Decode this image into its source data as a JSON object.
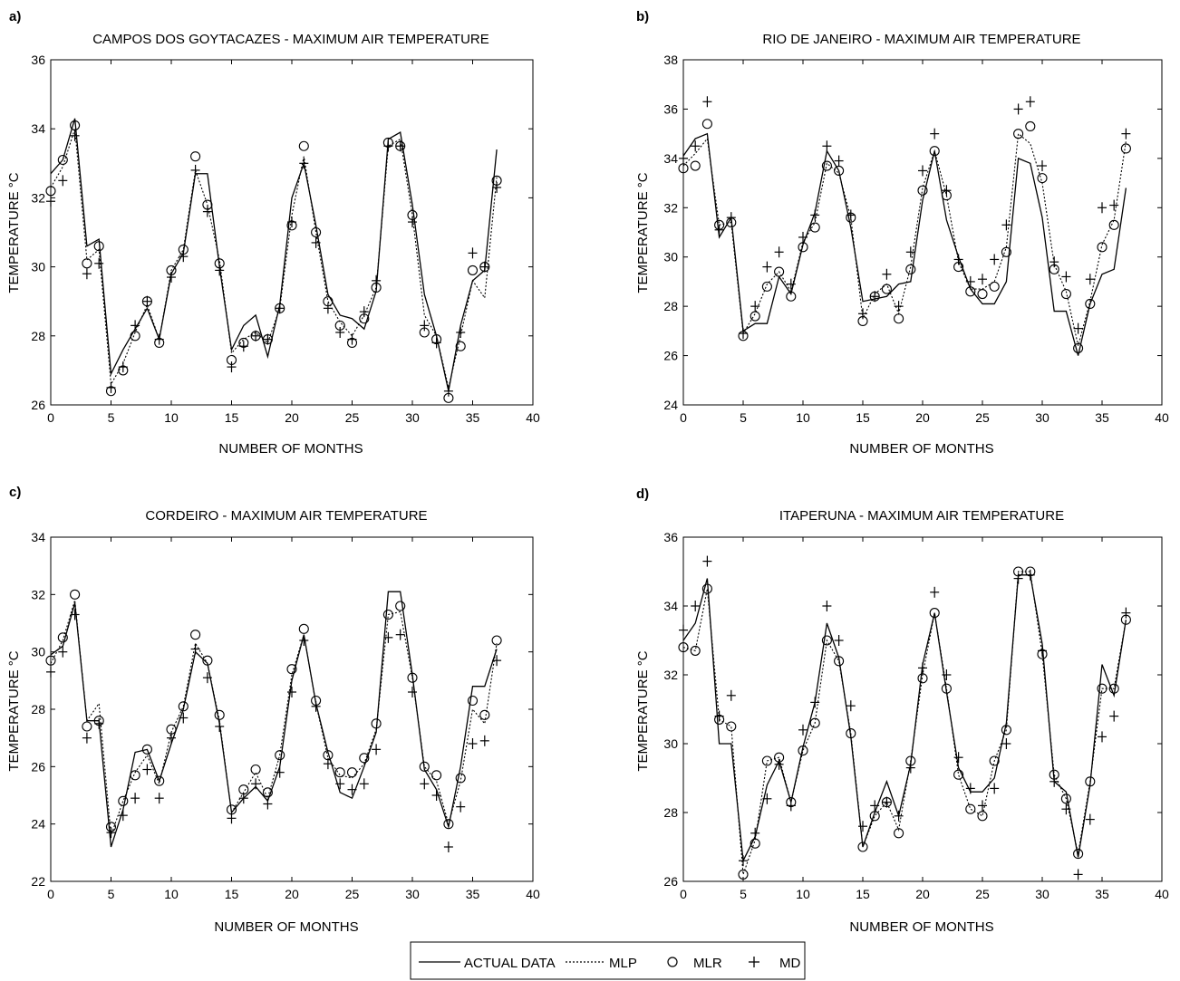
{
  "figure": {
    "legend": {
      "entries": [
        {
          "label": "ACTUAL DATA",
          "style": "solid-line"
        },
        {
          "label": "MLP",
          "style": "dotted-line"
        },
        {
          "label": "MLR",
          "style": "circle-marker"
        },
        {
          "label": "MD",
          "style": "plus-marker"
        }
      ]
    }
  },
  "chart_data": [
    {
      "panel": "a)",
      "type": "line",
      "title": "CAMPOS DOS GOYTACAZES - MAXIMUM AIR TEMPERATURE",
      "xlabel": "NUMBER OF MONTHS",
      "ylabel": "TEMPERATURE °C",
      "xlim": [
        0,
        40
      ],
      "ylim": [
        26,
        36
      ],
      "xticks": [
        0,
        5,
        10,
        15,
        20,
        25,
        30,
        35,
        40
      ],
      "yticks": [
        26,
        28,
        30,
        32,
        34,
        36
      ],
      "grid": false,
      "x": [
        0,
        1,
        2,
        3,
        4,
        5,
        6,
        7,
        8,
        9,
        10,
        11,
        12,
        13,
        14,
        15,
        16,
        17,
        18,
        19,
        20,
        21,
        22,
        23,
        24,
        25,
        26,
        27,
        28,
        29,
        30,
        31,
        32,
        33,
        34,
        35,
        36,
        37
      ],
      "series": [
        {
          "name": "ACTUAL DATA",
          "values": [
            32.7,
            33.1,
            34.3,
            30.6,
            30.8,
            26.9,
            27.6,
            28.2,
            28.8,
            27.9,
            29.8,
            30.4,
            32.7,
            32.7,
            30.0,
            27.6,
            28.3,
            28.6,
            27.4,
            28.9,
            32.0,
            33.0,
            31.2,
            29.2,
            28.6,
            28.5,
            28.2,
            29.3,
            33.7,
            33.9,
            31.8,
            29.2,
            28.0,
            26.4,
            28.3,
            29.6,
            29.9,
            33.4
          ]
        },
        {
          "name": "MLP",
          "values": [
            32.3,
            32.9,
            34.0,
            30.2,
            30.5,
            26.6,
            27.2,
            28.1,
            28.9,
            27.9,
            29.9,
            30.5,
            32.8,
            31.8,
            30.2,
            27.5,
            27.9,
            28.1,
            27.8,
            28.8,
            31.5,
            33.2,
            31.0,
            29.0,
            28.4,
            28.0,
            28.6,
            29.4,
            33.5,
            33.7,
            31.5,
            28.6,
            28.0,
            26.5,
            28.0,
            29.6,
            29.1,
            32.6
          ]
        },
        {
          "name": "MLR",
          "values": [
            32.2,
            33.1,
            34.1,
            30.1,
            30.6,
            26.4,
            27.0,
            28.0,
            29.0,
            27.8,
            29.9,
            30.5,
            33.2,
            31.8,
            30.1,
            27.3,
            27.8,
            28.0,
            27.9,
            28.8,
            31.2,
            33.5,
            31.0,
            29.0,
            28.3,
            27.8,
            28.5,
            29.4,
            33.6,
            33.5,
            31.5,
            28.1,
            27.9,
            26.2,
            27.7,
            29.9,
            30.0,
            32.5
          ]
        },
        {
          "name": "MD",
          "values": [
            31.9,
            32.5,
            33.8,
            29.8,
            30.1,
            26.5,
            27.1,
            28.3,
            29.0,
            27.9,
            29.7,
            30.3,
            32.8,
            31.6,
            29.9,
            27.1,
            27.7,
            28.0,
            27.9,
            28.8,
            31.3,
            33.0,
            30.7,
            28.8,
            28.1,
            27.9,
            28.7,
            29.6,
            33.5,
            33.5,
            31.3,
            28.3,
            27.8,
            26.4,
            28.1,
            30.4,
            30.0,
            32.3
          ]
        }
      ]
    },
    {
      "panel": "b)",
      "type": "line",
      "title": "RIO DE JANEIRO - MAXIMUM AIR TEMPERATURE",
      "xlabel": "NUMBER OF MONTHS",
      "ylabel": "TEMPERATURE °C",
      "xlim": [
        0,
        40
      ],
      "ylim": [
        24,
        38
      ],
      "xticks": [
        0,
        5,
        10,
        15,
        20,
        25,
        30,
        35,
        40
      ],
      "yticks": [
        24,
        26,
        28,
        30,
        32,
        34,
        36,
        38
      ],
      "grid": false,
      "x": [
        0,
        1,
        2,
        3,
        4,
        5,
        6,
        7,
        8,
        9,
        10,
        11,
        12,
        13,
        14,
        15,
        16,
        17,
        18,
        19,
        20,
        21,
        22,
        23,
        24,
        25,
        26,
        27,
        28,
        29,
        30,
        31,
        32,
        33,
        34,
        35,
        36,
        37
      ],
      "series": [
        {
          "name": "ACTUAL DATA",
          "values": [
            34.1,
            34.8,
            35.0,
            30.8,
            31.6,
            27.0,
            27.3,
            27.3,
            29.2,
            28.5,
            30.5,
            31.8,
            34.3,
            33.5,
            31.2,
            28.2,
            28.3,
            28.4,
            28.9,
            29.0,
            32.3,
            34.3,
            31.5,
            30.0,
            28.7,
            28.1,
            28.1,
            29.0,
            34.0,
            33.8,
            31.6,
            27.8,
            27.8,
            26.0,
            28.1,
            29.3,
            29.5,
            32.8
          ]
        },
        {
          "name": "MLP",
          "values": [
            33.7,
            34.2,
            34.8,
            31.3,
            31.4,
            26.9,
            27.7,
            28.9,
            29.4,
            28.6,
            30.6,
            31.4,
            33.8,
            33.4,
            31.6,
            27.5,
            28.5,
            28.9,
            27.7,
            29.6,
            32.8,
            34.3,
            32.5,
            29.8,
            28.7,
            28.7,
            29.0,
            30.4,
            35.0,
            34.6,
            33.0,
            29.7,
            28.6,
            26.4,
            28.2,
            30.5,
            31.5,
            34.7
          ]
        },
        {
          "name": "MLR",
          "values": [
            33.6,
            33.7,
            35.4,
            31.3,
            31.4,
            26.8,
            27.6,
            28.8,
            29.4,
            28.4,
            30.4,
            31.2,
            33.7,
            33.5,
            31.6,
            27.4,
            28.4,
            28.7,
            27.5,
            29.5,
            32.7,
            34.3,
            32.5,
            29.6,
            28.6,
            28.5,
            28.8,
            30.2,
            35.0,
            35.3,
            33.2,
            29.5,
            28.5,
            26.3,
            28.1,
            30.4,
            31.3,
            34.4
          ]
        },
        {
          "name": "MD",
          "values": [
            34.0,
            34.5,
            36.3,
            31.1,
            31.6,
            26.9,
            28.0,
            29.6,
            30.2,
            28.9,
            30.8,
            31.7,
            34.5,
            33.9,
            31.7,
            27.7,
            28.4,
            29.3,
            28.0,
            30.2,
            33.5,
            35.0,
            32.7,
            29.9,
            29.0,
            29.1,
            29.9,
            31.3,
            36.0,
            36.3,
            33.7,
            29.8,
            29.2,
            27.1,
            29.1,
            32.0,
            32.1,
            35.0
          ]
        }
      ]
    },
    {
      "panel": "c)",
      "type": "line",
      "title": "CORDEIRO - MAXIMUM AIR TEMPERATURE",
      "xlabel": "NUMBER OF MONTHS",
      "ylabel": "TEMPERATURE °C",
      "xlim": [
        0,
        40
      ],
      "ylim": [
        22,
        34
      ],
      "xticks": [
        0,
        5,
        10,
        15,
        20,
        25,
        30,
        35,
        40
      ],
      "yticks": [
        22,
        24,
        26,
        28,
        30,
        32,
        34
      ],
      "grid": false,
      "x": [
        0,
        1,
        2,
        3,
        4,
        5,
        6,
        7,
        8,
        9,
        10,
        11,
        12,
        13,
        14,
        15,
        16,
        17,
        18,
        19,
        20,
        21,
        22,
        23,
        24,
        25,
        26,
        27,
        28,
        29,
        30,
        31,
        32,
        33,
        34,
        35,
        36,
        37
      ],
      "series": [
        {
          "name": "ACTUAL DATA",
          "values": [
            29.9,
            30.2,
            31.7,
            27.6,
            27.6,
            23.2,
            24.5,
            26.5,
            26.6,
            25.5,
            26.8,
            28.0,
            30.0,
            29.6,
            27.5,
            24.4,
            24.9,
            25.3,
            24.8,
            26.0,
            29.0,
            30.6,
            28.2,
            26.5,
            25.1,
            24.9,
            26.0,
            27.2,
            32.1,
            32.1,
            29.2,
            25.9,
            25.2,
            23.9,
            26.0,
            28.8,
            28.8,
            30.1
          ]
        },
        {
          "name": "MLP",
          "values": [
            29.6,
            30.4,
            31.8,
            27.6,
            28.2,
            23.6,
            24.8,
            25.8,
            26.4,
            25.4,
            27.2,
            28.1,
            30.3,
            29.6,
            27.6,
            24.4,
            25.1,
            25.8,
            24.9,
            26.4,
            29.2,
            30.6,
            28.2,
            26.3,
            25.7,
            25.6,
            26.1,
            27.3,
            31.3,
            31.4,
            29.1,
            26.0,
            25.5,
            24.0,
            25.5,
            28.0,
            27.5,
            30.3
          ]
        },
        {
          "name": "MLR",
          "values": [
            29.7,
            30.5,
            32.0,
            27.4,
            27.6,
            23.9,
            24.8,
            25.7,
            26.6,
            25.5,
            27.3,
            28.1,
            30.6,
            29.7,
            27.8,
            24.5,
            25.2,
            25.9,
            25.1,
            26.4,
            29.4,
            30.8,
            28.3,
            26.4,
            25.8,
            25.8,
            26.3,
            27.5,
            31.3,
            31.6,
            29.1,
            26.0,
            25.7,
            24.0,
            25.6,
            28.3,
            27.8,
            30.4
          ]
        },
        {
          "name": "MD",
          "values": [
            29.3,
            30.0,
            31.3,
            27.0,
            27.5,
            23.7,
            24.3,
            24.9,
            25.9,
            24.9,
            27.0,
            27.7,
            30.1,
            29.1,
            27.4,
            24.2,
            24.9,
            25.4,
            24.7,
            25.8,
            28.6,
            30.4,
            28.1,
            26.1,
            25.4,
            25.2,
            25.4,
            26.6,
            30.5,
            30.6,
            28.6,
            25.4,
            25.0,
            23.2,
            24.6,
            26.8,
            26.9,
            29.7
          ]
        }
      ]
    },
    {
      "panel": "d)",
      "type": "line",
      "title": "ITAPERUNA - MAXIMUM AIR TEMPERATURE",
      "xlabel": "NUMBER OF MONTHS",
      "ylabel": "TEMPERATURE °C",
      "xlim": [
        0,
        40
      ],
      "ylim": [
        26,
        36
      ],
      "xticks": [
        0,
        5,
        10,
        15,
        20,
        25,
        30,
        35,
        40
      ],
      "yticks": [
        26,
        28,
        30,
        32,
        34,
        36
      ],
      "grid": false,
      "x": [
        0,
        1,
        2,
        3,
        4,
        5,
        6,
        7,
        8,
        9,
        10,
        11,
        12,
        13,
        14,
        15,
        16,
        17,
        18,
        19,
        20,
        21,
        22,
        23,
        24,
        25,
        26,
        27,
        28,
        29,
        30,
        31,
        32,
        33,
        34,
        35,
        36,
        37
      ],
      "series": [
        {
          "name": "ACTUAL DATA",
          "values": [
            33.0,
            33.5,
            34.8,
            30.0,
            30.0,
            26.6,
            27.3,
            28.8,
            29.5,
            28.3,
            29.9,
            31.2,
            33.5,
            32.5,
            30.2,
            27.0,
            28.0,
            28.9,
            27.9,
            29.4,
            32.3,
            33.8,
            31.5,
            29.3,
            28.6,
            28.6,
            29.0,
            30.6,
            34.9,
            34.9,
            32.9,
            28.9,
            28.6,
            26.7,
            28.8,
            32.3,
            31.4,
            33.6
          ]
        },
        {
          "name": "MLP",
          "values": [
            32.8,
            32.7,
            34.5,
            30.7,
            30.5,
            26.2,
            27.2,
            29.5,
            29.6,
            28.3,
            29.8,
            30.6,
            33.0,
            32.4,
            30.3,
            27.0,
            27.9,
            28.3,
            27.5,
            29.5,
            32.0,
            33.8,
            31.6,
            29.1,
            28.1,
            27.9,
            29.5,
            30.4,
            35.0,
            35.0,
            32.6,
            29.1,
            28.4,
            26.8,
            28.9,
            31.6,
            31.6,
            33.6
          ]
        },
        {
          "name": "MLR",
          "values": [
            32.8,
            32.7,
            34.5,
            30.7,
            30.5,
            26.2,
            27.1,
            29.5,
            29.6,
            28.3,
            29.8,
            30.6,
            33.0,
            32.4,
            30.3,
            27.0,
            27.9,
            28.3,
            27.4,
            29.5,
            31.9,
            33.8,
            31.6,
            29.1,
            28.1,
            27.9,
            29.5,
            30.4,
            35.0,
            35.0,
            32.6,
            29.1,
            28.4,
            26.8,
            28.9,
            31.6,
            31.6,
            33.6
          ]
        },
        {
          "name": "MD",
          "values": [
            33.3,
            34.0,
            35.3,
            30.8,
            31.4,
            26.6,
            27.4,
            28.4,
            29.4,
            28.2,
            30.4,
            31.2,
            34.0,
            33.0,
            31.1,
            27.6,
            28.2,
            28.3,
            27.9,
            29.3,
            32.2,
            34.4,
            32.0,
            29.6,
            28.7,
            28.2,
            28.7,
            30.0,
            34.8,
            34.9,
            32.7,
            28.9,
            28.1,
            26.2,
            27.8,
            30.2,
            30.8,
            33.8
          ]
        }
      ]
    }
  ]
}
